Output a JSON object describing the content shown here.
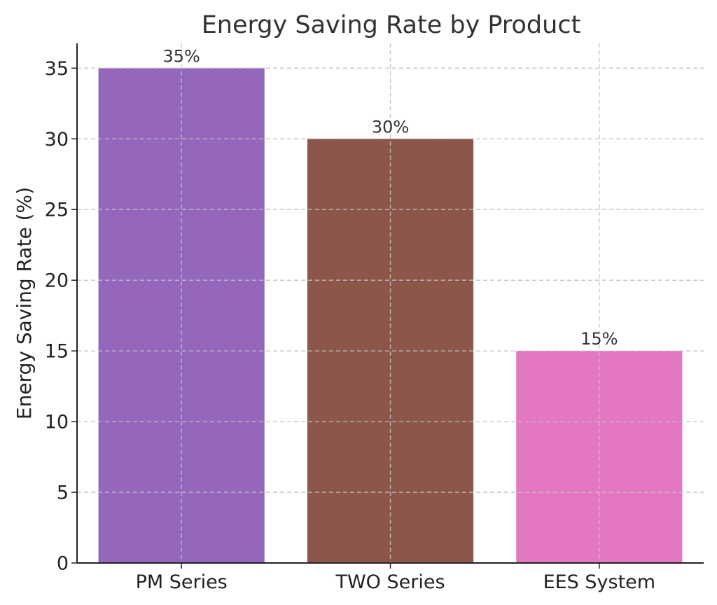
{
  "chart_data": {
    "type": "bar",
    "title": "Energy Saving Rate by Product",
    "xlabel": "",
    "ylabel": "Energy Saving Rate (%)",
    "categories": [
      "PM Series",
      "TWO Series",
      "EES System"
    ],
    "values": [
      35,
      30,
      15
    ],
    "data_labels": [
      "35%",
      "30%",
      "15%"
    ],
    "colors": [
      "#9467bd",
      "#8c564b",
      "#e377c2"
    ],
    "ylim": [
      0,
      36.75
    ],
    "yticks": [
      0,
      5,
      10,
      15,
      20,
      25,
      30,
      35
    ],
    "grid": true
  }
}
